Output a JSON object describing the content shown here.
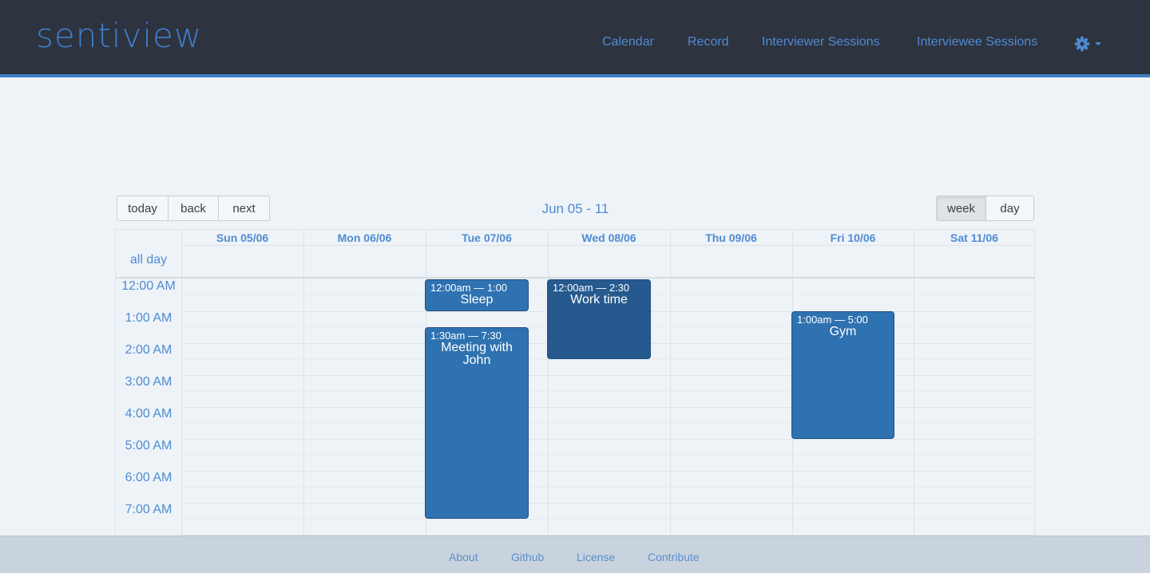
{
  "brand": "sentiview",
  "nav": {
    "calendar": "Calendar",
    "record": "Record",
    "interviewer_sessions": "Interviewer Sessions",
    "interviewee_sessions": "Interviewee Sessions",
    "settings_icon": "gear-icon"
  },
  "toolbar": {
    "today": "today",
    "back": "back",
    "next": "next",
    "range": "Jun 05 - 11",
    "week": "week",
    "day": "day",
    "active_view": "week"
  },
  "calendar": {
    "all_day_label": "all day",
    "days": [
      "Sun 05/06",
      "Mon 06/06",
      "Tue 07/06",
      "Wed 08/06",
      "Thu 09/06",
      "Fri 10/06",
      "Sat 11/06"
    ],
    "times": [
      "12:00 AM",
      "1:00 AM",
      "2:00 AM",
      "3:00 AM",
      "4:00 AM",
      "5:00 AM",
      "6:00 AM",
      "7:00 AM"
    ],
    "events": [
      {
        "time": "12:00am — 1:00",
        "title": "Sleep"
      },
      {
        "time": "1:30am — 7:30",
        "title": "Meeting with John"
      },
      {
        "time": "12:00am — 2:30",
        "title": "Work time"
      },
      {
        "time": "1:00am — 5:00",
        "title": "Gym"
      }
    ]
  },
  "footer": {
    "about": "About",
    "github": "Github",
    "license": "License",
    "contribute": "Contribute"
  },
  "colors": {
    "navbar": "#2d333f",
    "accent": "#3d7fc6",
    "event": "#2f72b1",
    "event_dark": "#265a8e",
    "background": "#eef3f8",
    "footer": "#c9d3dd"
  }
}
